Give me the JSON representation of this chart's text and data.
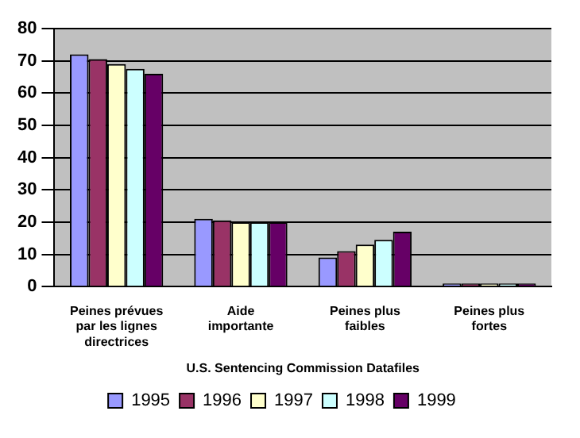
{
  "chart_data": {
    "type": "bar",
    "categories": [
      "Peines prévues par les lignes directrices",
      "Aide importante",
      "Peines plus faibles",
      "Peines plus fortes"
    ],
    "series": [
      {
        "name": "1995",
        "color": "#9999ff",
        "values": [
          72,
          21,
          9,
          1
        ]
      },
      {
        "name": "1996",
        "color": "#993366",
        "values": [
          70.5,
          20.5,
          11,
          1
        ]
      },
      {
        "name": "1997",
        "color": "#ffffcc",
        "values": [
          69,
          20,
          13,
          1
        ]
      },
      {
        "name": "1998",
        "color": "#ccffff",
        "values": [
          67.5,
          20,
          14.5,
          1
        ]
      },
      {
        "name": "1999",
        "color": "#660066",
        "values": [
          66,
          20,
          17,
          1
        ]
      }
    ],
    "xlabel": "U.S. Sentencing Commission Datafiles",
    "ylim": [
      0,
      80
    ],
    "yticks": [
      0,
      10,
      20,
      30,
      40,
      50,
      60,
      70,
      80
    ],
    "grid": "y",
    "legend": "bottom"
  }
}
